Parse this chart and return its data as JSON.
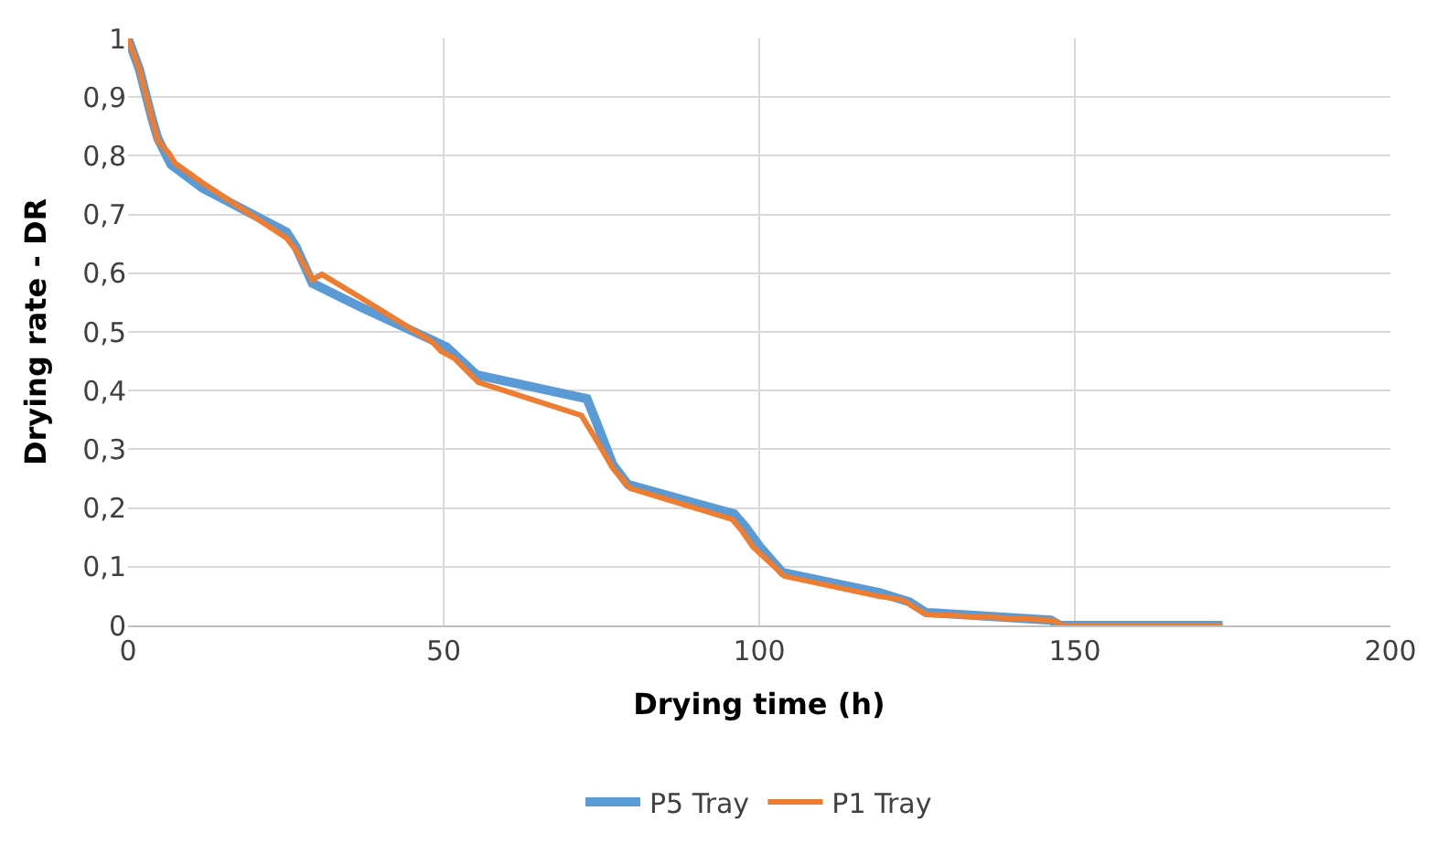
{
  "chart_data": {
    "type": "line",
    "xlabel": "Drying time (h)",
    "ylabel": "Drying rate - DR",
    "xlim": [
      0,
      200
    ],
    "xticks": [
      0,
      50,
      100,
      150,
      200
    ],
    "ylim": [
      0,
      1
    ],
    "yticks": [
      0,
      {
        "value": 0.1,
        "label": "0,1"
      },
      {
        "value": 0.2,
        "label": "0,2"
      },
      {
        "value": 0.3,
        "label": "0,3"
      },
      {
        "value": 0.4,
        "label": "0,4"
      },
      {
        "value": 0.5,
        "label": "0,5"
      },
      {
        "value": 0.6,
        "label": "0,6"
      },
      {
        "value": 0.7,
        "label": "0,7"
      },
      {
        "value": 0.8,
        "label": "0,8"
      },
      {
        "value": 0.9,
        "label": "0,9"
      },
      1
    ],
    "grid": true,
    "legend": "bottom",
    "marker": "none",
    "line_style": "solid",
    "series": [
      {
        "name": "P5 Tray",
        "color": "#5b9bd5",
        "x": [
          0,
          1.8,
          3.8,
          4.7,
          6.8,
          11.8,
          25.1,
          26.6,
          29.2,
          36.9,
          48.2,
          50.5,
          55.2,
          72.7,
          74.2,
          76.8,
          79.2,
          96,
          97.8,
          100.1,
          103.7,
          119,
          123.8,
          126.4,
          146.2,
          147.7,
          173.4
        ],
        "values": [
          1,
          0.947,
          0.863,
          0.83,
          0.785,
          0.745,
          0.67,
          0.645,
          0.583,
          0.542,
          0.486,
          0.474,
          0.427,
          0.386,
          0.346,
          0.274,
          0.24,
          0.19,
          0.168,
          0.134,
          0.09,
          0.056,
          0.04,
          0.022,
          0.009,
          0,
          0
        ]
      },
      {
        "name": "P1 Tray",
        "color": "#ed7d31",
        "x": [
          0,
          1.8,
          3.8,
          4.7,
          6.5,
          7.4,
          11.8,
          25.1,
          26.6,
          29.2,
          30.7,
          36.9,
          48.2,
          49.6,
          51.7,
          55.5,
          71.8,
          73.9,
          76.8,
          79.5,
          95.7,
          97.2,
          99,
          104,
          118.8,
          122.6,
          126.4,
          146.5,
          148,
          173.4
        ],
        "values": [
          1,
          0.947,
          0.863,
          0.826,
          0.804,
          0.788,
          0.754,
          0.66,
          0.639,
          0.589,
          0.598,
          0.558,
          0.483,
          0.467,
          0.455,
          0.414,
          0.358,
          0.321,
          0.268,
          0.234,
          0.181,
          0.162,
          0.134,
          0.084,
          0.05,
          0.044,
          0.019,
          0.009,
          0,
          0
        ]
      }
    ]
  }
}
